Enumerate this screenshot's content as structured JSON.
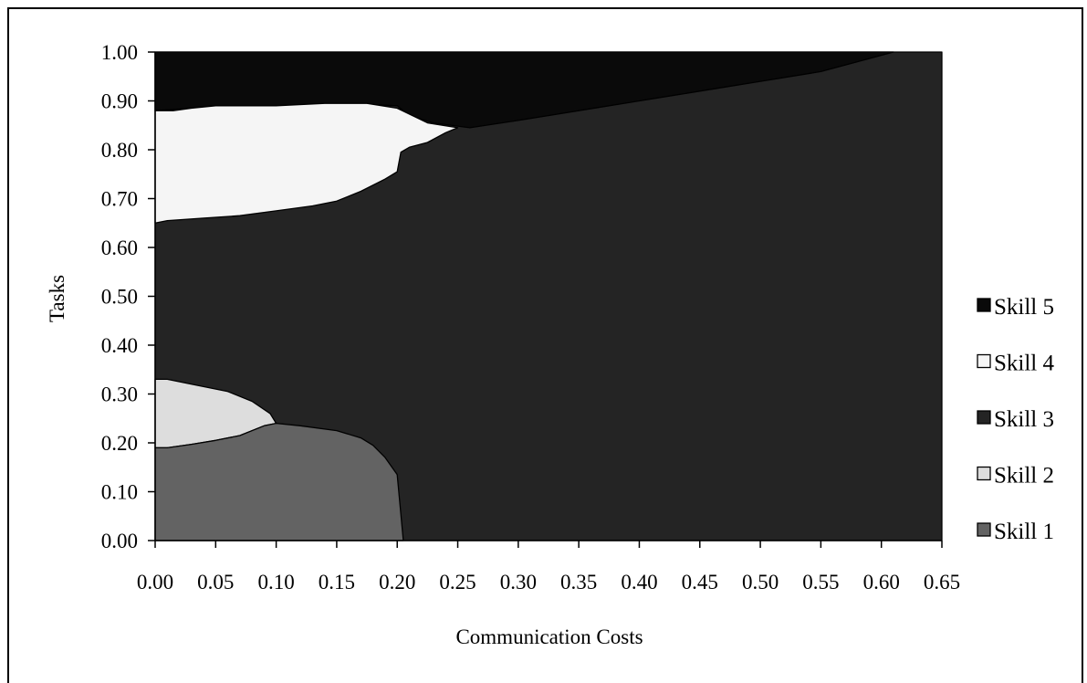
{
  "chart_data": {
    "type": "area",
    "title": "",
    "xlabel": "Communication Costs",
    "ylabel": "Tasks",
    "xlim": [
      0,
      0.65
    ],
    "ylim": [
      0,
      1
    ],
    "x_ticks": [
      "0.00",
      "0.05",
      "0.10",
      "0.15",
      "0.20",
      "0.25",
      "0.30",
      "0.35",
      "0.40",
      "0.45",
      "0.50",
      "0.55",
      "0.60",
      "0.65"
    ],
    "y_ticks": [
      "0.00",
      "0.10",
      "0.20",
      "0.30",
      "0.40",
      "0.50",
      "0.60",
      "0.70",
      "0.80",
      "0.90",
      "1.00"
    ],
    "grid": false,
    "legend_position": "right",
    "legend": [
      "Skill 5",
      "Skill 4",
      "Skill 3",
      "Skill 2",
      "Skill 1"
    ],
    "colors": {
      "Skill 5": "#0a0a0a",
      "Skill 4": "#f5f5f5",
      "Skill 3": "#242424",
      "Skill 2": "#dddddd",
      "Skill 1": "#636363"
    },
    "regions": [
      {
        "name": "Skill 3",
        "points": [
          [
            0,
            0
          ],
          [
            0.65,
            0
          ],
          [
            0.65,
            1
          ],
          [
            0,
            1
          ]
        ]
      },
      {
        "name": "Skill 5",
        "points": [
          [
            0,
            1
          ],
          [
            0.61,
            1
          ],
          [
            0.55,
            0.96
          ],
          [
            0.5,
            0.94
          ],
          [
            0.45,
            0.92
          ],
          [
            0.4,
            0.9
          ],
          [
            0.35,
            0.88
          ],
          [
            0.3,
            0.86
          ],
          [
            0.26,
            0.845
          ],
          [
            0.23,
            0.855
          ],
          [
            0.21,
            0.87
          ],
          [
            0.2,
            0.89
          ],
          [
            0.15,
            0.895
          ],
          [
            0.1,
            0.89
          ],
          [
            0.05,
            0.89
          ],
          [
            0.03,
            0.885
          ],
          [
            0,
            0.88
          ]
        ]
      },
      {
        "name": "Skill 4",
        "points": [
          [
            0,
            0.88
          ],
          [
            0.015,
            0.88
          ],
          [
            0.03,
            0.885
          ],
          [
            0.05,
            0.89
          ],
          [
            0.1,
            0.89
          ],
          [
            0.14,
            0.895
          ],
          [
            0.175,
            0.895
          ],
          [
            0.2,
            0.885
          ],
          [
            0.225,
            0.855
          ],
          [
            0.25,
            0.845
          ],
          [
            0.24,
            0.835
          ],
          [
            0.225,
            0.815
          ],
          [
            0.21,
            0.805
          ],
          [
            0.203,
            0.795
          ],
          [
            0.2,
            0.755
          ],
          [
            0.19,
            0.74
          ],
          [
            0.17,
            0.715
          ],
          [
            0.15,
            0.695
          ],
          [
            0.13,
            0.685
          ],
          [
            0.1,
            0.675
          ],
          [
            0.07,
            0.665
          ],
          [
            0.04,
            0.66
          ],
          [
            0.01,
            0.655
          ],
          [
            0,
            0.65
          ]
        ]
      },
      {
        "name": "Skill 2",
        "points": [
          [
            0,
            0.33
          ],
          [
            0.01,
            0.33
          ],
          [
            0.03,
            0.32
          ],
          [
            0.06,
            0.305
          ],
          [
            0.08,
            0.285
          ],
          [
            0.095,
            0.26
          ],
          [
            0.1,
            0.24
          ],
          [
            0.09,
            0.235
          ],
          [
            0.07,
            0.215
          ],
          [
            0.05,
            0.205
          ],
          [
            0.03,
            0.197
          ],
          [
            0.01,
            0.19
          ],
          [
            0,
            0.19
          ]
        ]
      },
      {
        "name": "Skill 1",
        "points": [
          [
            0,
            0
          ],
          [
            0,
            0.19
          ],
          [
            0.01,
            0.19
          ],
          [
            0.03,
            0.197
          ],
          [
            0.05,
            0.205
          ],
          [
            0.07,
            0.215
          ],
          [
            0.09,
            0.235
          ],
          [
            0.1,
            0.24
          ],
          [
            0.12,
            0.235
          ],
          [
            0.15,
            0.225
          ],
          [
            0.17,
            0.21
          ],
          [
            0.18,
            0.195
          ],
          [
            0.19,
            0.17
          ],
          [
            0.2,
            0.135
          ],
          [
            0.205,
            0
          ]
        ]
      }
    ]
  }
}
